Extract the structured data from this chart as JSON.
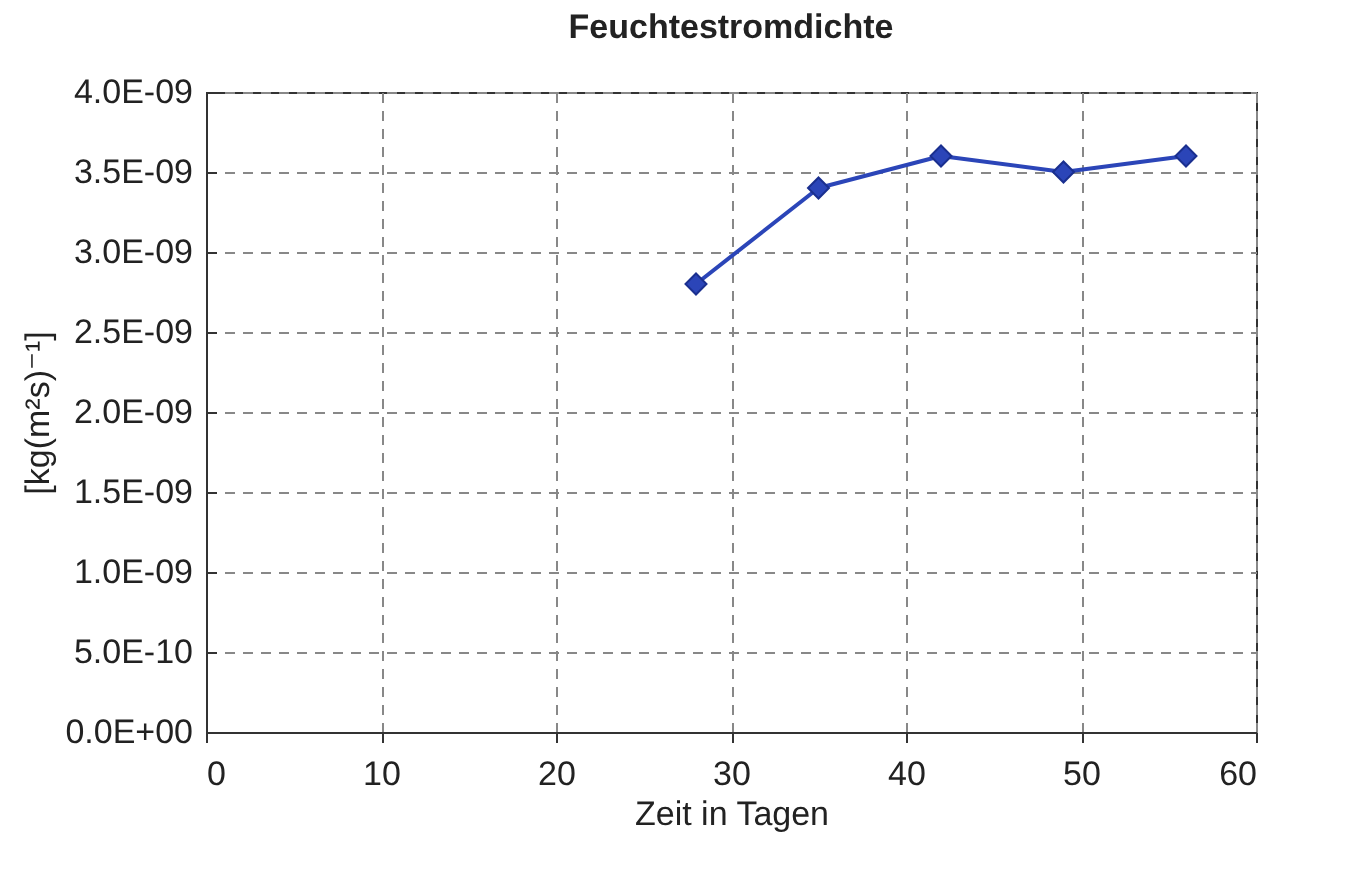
{
  "chart_data": {
    "type": "line",
    "title": "Feuchtestromdichte",
    "xlabel": "Zeit in Tagen",
    "ylabel": "[kg(m²s)⁻¹]",
    "x": [
      28,
      35,
      42,
      49,
      56
    ],
    "series": [
      {
        "color": "#2b45b8",
        "values": [
          2.8e-09,
          3.4e-09,
          3.6e-09,
          3.5e-09,
          3.6e-09
        ]
      }
    ],
    "xlim": [
      0,
      60
    ],
    "xticks": [
      0,
      10,
      20,
      30,
      40,
      50,
      60
    ],
    "ylim": [
      0,
      4e-09
    ],
    "yticks": [
      {
        "value": 0,
        "label": "0.0E+00"
      },
      {
        "value": 5e-10,
        "label": "5.0E-10"
      },
      {
        "value": 1e-09,
        "label": "1.0E-09"
      },
      {
        "value": 1.5e-09,
        "label": "1.5E-09"
      },
      {
        "value": 2e-09,
        "label": "2.0E-09"
      },
      {
        "value": 2.5e-09,
        "label": "2.5E-09"
      },
      {
        "value": 3e-09,
        "label": "3.0E-09"
      },
      {
        "value": 3.5e-09,
        "label": "3.5E-09"
      },
      {
        "value": 4e-09,
        "label": "4.0E-09"
      }
    ],
    "grid": true,
    "marker": "diamond",
    "line_style": "solid"
  }
}
